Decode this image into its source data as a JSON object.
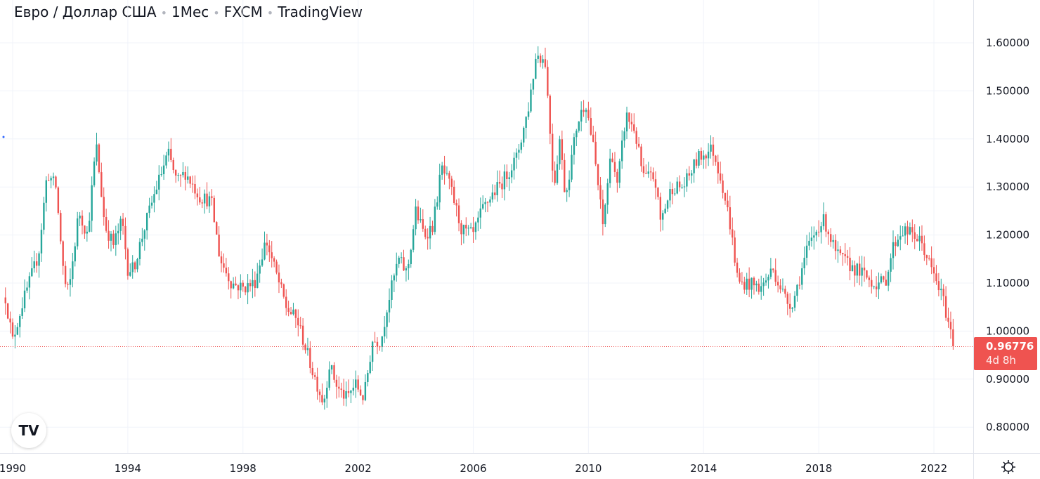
{
  "title": {
    "symbol": "Евро / Доллар США",
    "interval": "1Мес",
    "exchange": "FXCM",
    "source": "TradingView"
  },
  "colors": {
    "up": "#26a69a",
    "down": "#ef5350",
    "grid": "#f0f3fa",
    "axis": "#e0e3eb"
  },
  "price_label": {
    "value": "0.96776",
    "countdown": "4d 8h"
  },
  "logo": "TV",
  "chart_data": {
    "type": "candlestick",
    "title": "Евро / Доллар США · 1Мес · FXCM",
    "interval": "monthly",
    "y_ticks": [
      0.8,
      0.9,
      1.0,
      1.1,
      1.2,
      1.3,
      1.4,
      1.5,
      1.6
    ],
    "y_tick_labels": [
      "0.80000",
      "0.90000",
      "1.00000",
      "1.10000",
      "1.20000",
      "1.30000",
      "1.40000",
      "1.50000",
      "1.60000"
    ],
    "x_ticks": [
      1990,
      1994,
      1998,
      2002,
      2006,
      2010,
      2014,
      2018,
      2022
    ],
    "x_tick_labels": [
      "1990",
      "1994",
      "1998",
      "2002",
      "2006",
      "2010",
      "2014",
      "2018",
      "2022"
    ],
    "ylim": [
      0.75,
      1.66
    ],
    "xlim": [
      1989.56,
      2023.35
    ],
    "last_price": 0.96776,
    "close_anchors": [
      [
        1989.75,
        1.07
      ],
      [
        1990.0,
        0.98
      ],
      [
        1990.3,
        1.05
      ],
      [
        1990.9,
        1.16
      ],
      [
        1991.2,
        1.33
      ],
      [
        1991.5,
        1.3
      ],
      [
        1991.8,
        1.1
      ],
      [
        1991.95,
        1.08
      ],
      [
        1992.3,
        1.25
      ],
      [
        1992.6,
        1.2
      ],
      [
        1992.9,
        1.39
      ],
      [
        1993.2,
        1.22
      ],
      [
        1993.5,
        1.18
      ],
      [
        1993.8,
        1.23
      ],
      [
        1994.0,
        1.13
      ],
      [
        1994.2,
        1.13
      ],
      [
        1994.6,
        1.22
      ],
      [
        1995.0,
        1.3
      ],
      [
        1995.4,
        1.37
      ],
      [
        1995.7,
        1.31
      ],
      [
        1996.0,
        1.33
      ],
      [
        1996.5,
        1.28
      ],
      [
        1996.9,
        1.27
      ],
      [
        1997.2,
        1.15
      ],
      [
        1997.6,
        1.1
      ],
      [
        1998.0,
        1.09
      ],
      [
        1998.4,
        1.1
      ],
      [
        1998.8,
        1.19
      ],
      [
        1999.1,
        1.13
      ],
      [
        1999.5,
        1.05
      ],
      [
        1999.9,
        1.02
      ],
      [
        2000.4,
        0.92
      ],
      [
        2000.8,
        0.85
      ],
      [
        2001.0,
        0.93
      ],
      [
        2001.3,
        0.88
      ],
      [
        2001.6,
        0.86
      ],
      [
        2001.9,
        0.89
      ],
      [
        2002.2,
        0.86
      ],
      [
        2002.5,
        0.98
      ],
      [
        2002.8,
        0.98
      ],
      [
        2003.0,
        1.05
      ],
      [
        2003.4,
        1.15
      ],
      [
        2003.7,
        1.12
      ],
      [
        2004.0,
        1.25
      ],
      [
        2004.3,
        1.2
      ],
      [
        2004.6,
        1.22
      ],
      [
        2004.9,
        1.34
      ],
      [
        2005.2,
        1.3
      ],
      [
        2005.6,
        1.21
      ],
      [
        2006.0,
        1.2
      ],
      [
        2006.3,
        1.25
      ],
      [
        2006.6,
        1.28
      ],
      [
        2007.0,
        1.31
      ],
      [
        2007.5,
        1.36
      ],
      [
        2007.9,
        1.46
      ],
      [
        2008.2,
        1.58
      ],
      [
        2008.5,
        1.56
      ],
      [
        2008.8,
        1.3
      ],
      [
        2009.0,
        1.4
      ],
      [
        2009.2,
        1.28
      ],
      [
        2009.6,
        1.43
      ],
      [
        2009.9,
        1.48
      ],
      [
        2010.2,
        1.37
      ],
      [
        2010.5,
        1.22
      ],
      [
        2010.8,
        1.38
      ],
      [
        2011.0,
        1.3
      ],
      [
        2011.3,
        1.45
      ],
      [
        2011.6,
        1.42
      ],
      [
        2011.9,
        1.32
      ],
      [
        2012.3,
        1.32
      ],
      [
        2012.5,
        1.23
      ],
      [
        2012.9,
        1.3
      ],
      [
        2013.3,
        1.3
      ],
      [
        2013.8,
        1.36
      ],
      [
        2014.3,
        1.38
      ],
      [
        2014.6,
        1.32
      ],
      [
        2014.9,
        1.23
      ],
      [
        2015.2,
        1.1
      ],
      [
        2015.5,
        1.1
      ],
      [
        2016.0,
        1.09
      ],
      [
        2016.4,
        1.13
      ],
      [
        2016.9,
        1.06
      ],
      [
        2017.1,
        1.06
      ],
      [
        2017.6,
        1.17
      ],
      [
        2018.0,
        1.22
      ],
      [
        2018.2,
        1.23
      ],
      [
        2018.6,
        1.16
      ],
      [
        2019.0,
        1.14
      ],
      [
        2019.5,
        1.12
      ],
      [
        2019.9,
        1.1
      ],
      [
        2020.3,
        1.1
      ],
      [
        2020.6,
        1.18
      ],
      [
        2020.9,
        1.21
      ],
      [
        2021.3,
        1.2
      ],
      [
        2021.6,
        1.18
      ],
      [
        2021.9,
        1.13
      ],
      [
        2022.3,
        1.07
      ],
      [
        2022.7,
        0.968
      ]
    ]
  }
}
